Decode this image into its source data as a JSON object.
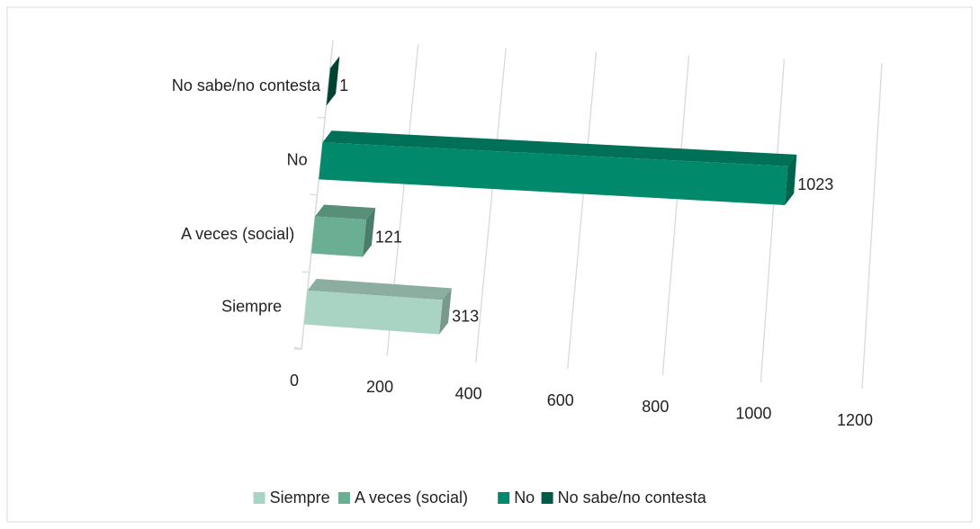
{
  "chart_data": {
    "type": "bar3d",
    "categories": [
      "Siempre",
      "A veces (social)",
      "No",
      "No sabe/no contesta"
    ],
    "values": [
      313,
      121,
      1023,
      1
    ],
    "colors": [
      "#a9d4c3",
      "#6aae93",
      "#00896a",
      "#005c46"
    ],
    "xlim": [
      0,
      1200
    ],
    "xticks": [
      0,
      200,
      400,
      600,
      800,
      1000,
      1200
    ],
    "grid": true,
    "legend": "bottom"
  }
}
